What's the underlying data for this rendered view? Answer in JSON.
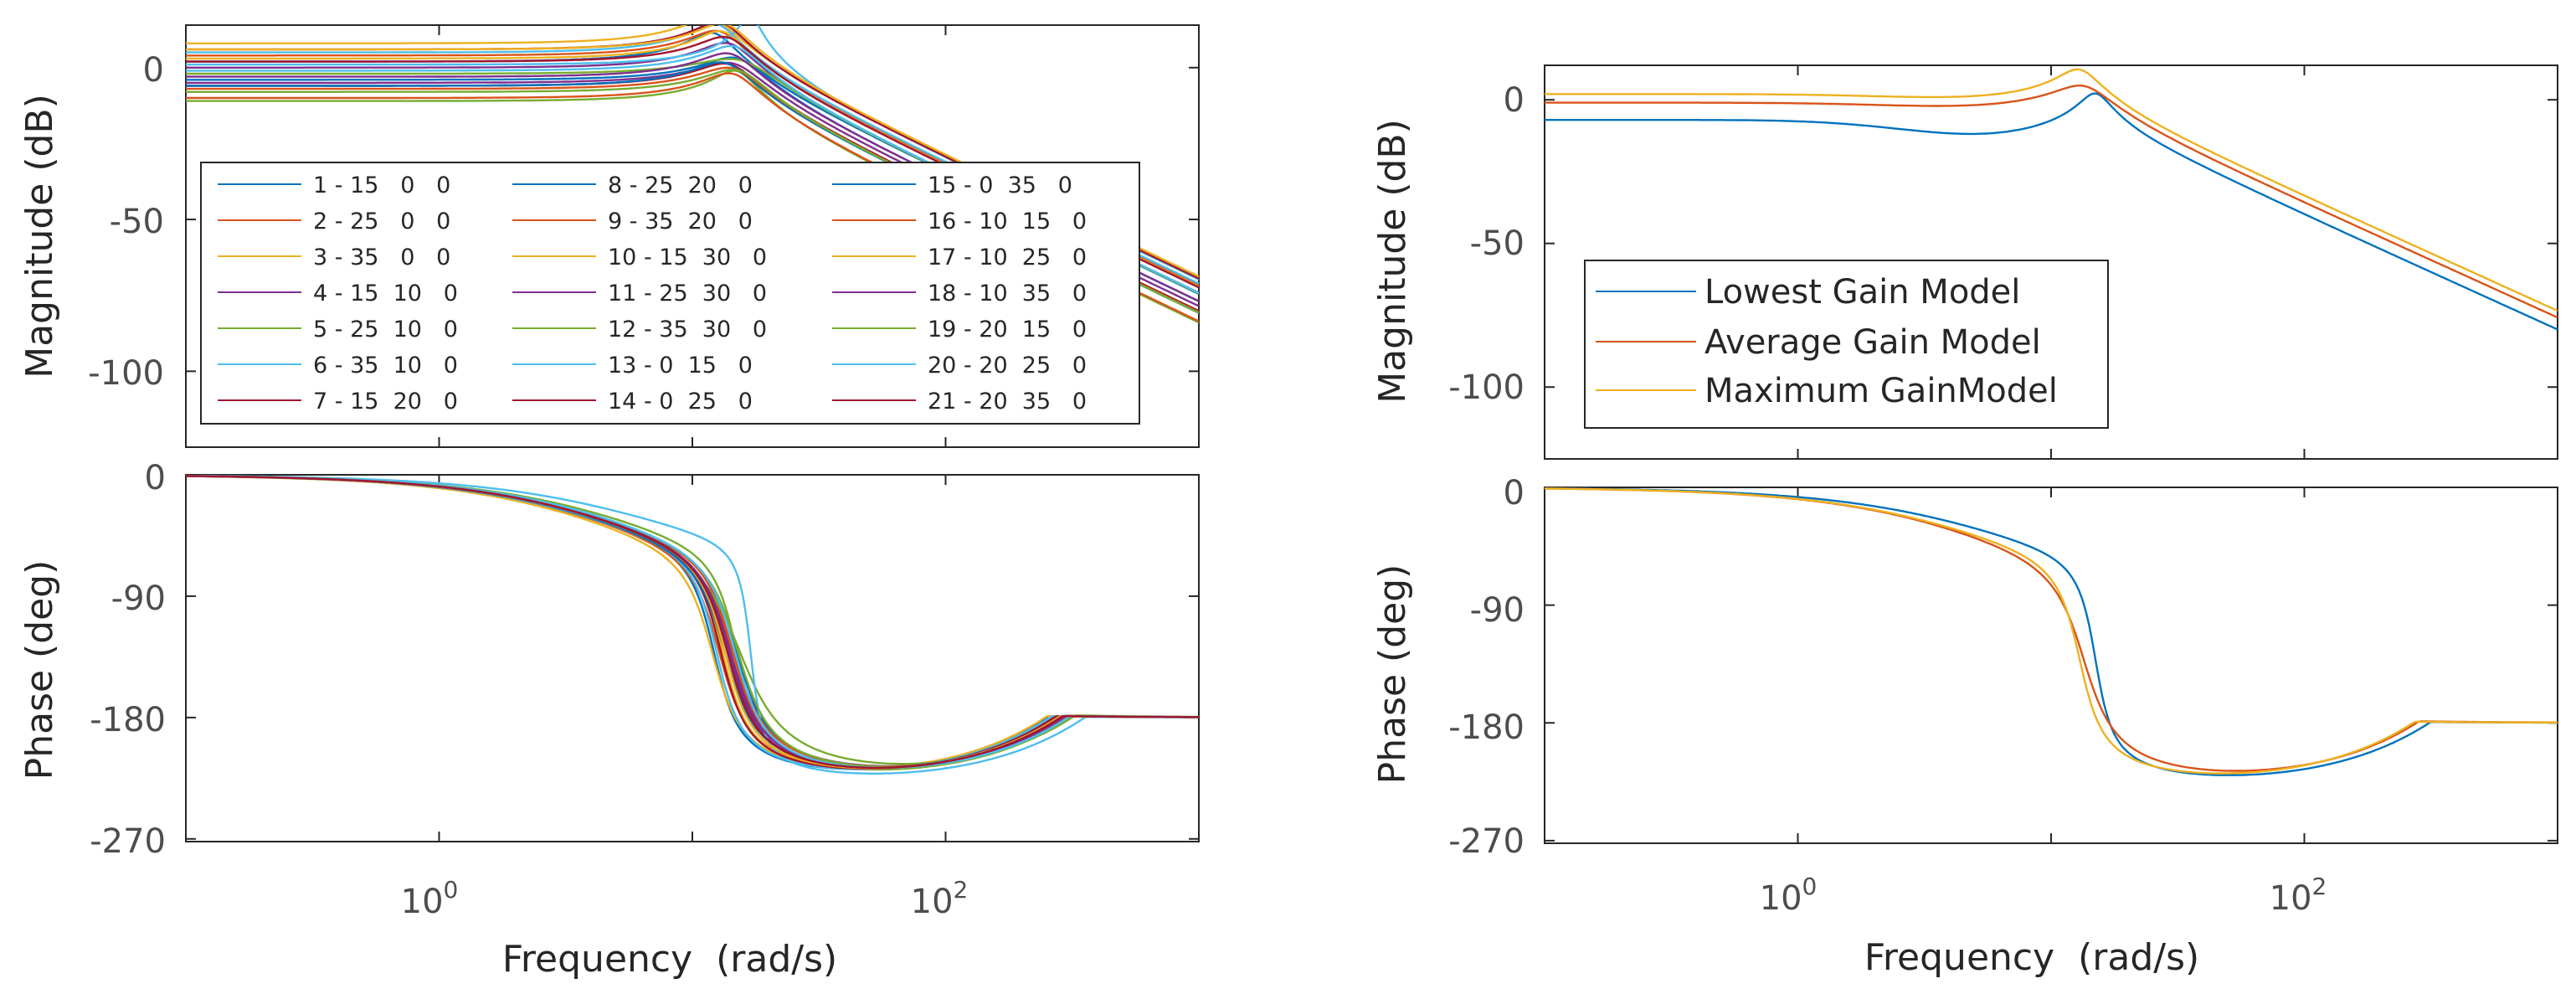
{
  "chart_data": [
    {
      "type": "line",
      "title": "",
      "panel": "magnitude",
      "xscale": "log",
      "xlim": [
        0.1,
        1000
      ],
      "ylim": [
        -125,
        14
      ],
      "xlabel": "",
      "ylabel": "Magnitude (dB)",
      "yticks": [
        0,
        -50,
        -100
      ],
      "ytick_labels": [
        "0",
        "-50",
        "-100"
      ],
      "legend_position": "center",
      "model": "second-order low-pass: K * wn^2 / (s^2 + 2*zeta*wn*s + wn^2); magnitude in dB, phase in degrees",
      "series": [
        {
          "name": "1 - 15   0   0",
          "color": "#0072BD",
          "gain_db": 2,
          "wn": 12.2,
          "zeta": 0.17
        },
        {
          "name": "2 - 25   0   0",
          "color": "#D95319",
          "gain_db": 4,
          "wn": 12.8,
          "zeta": 0.2
        },
        {
          "name": "3 - 35   0   0",
          "color": "#EDB120",
          "gain_db": 8,
          "wn": 12.0,
          "zeta": 0.2
        },
        {
          "name": "4 - 15  10   0",
          "color": "#7E2F8E",
          "gain_db": -5,
          "wn": 14.5,
          "zeta": 0.24
        },
        {
          "name": "5 - 25  10   0",
          "color": "#77AC30",
          "gain_db": -11,
          "wn": 15.0,
          "zeta": 0.16
        },
        {
          "name": "6 - 35  10   0",
          "color": "#4DBEEE",
          "gain_db": 5,
          "wn": 12.5,
          "zeta": 0.17
        },
        {
          "name": "7 - 15  20   0",
          "color": "#A2142F",
          "gain_db": -6,
          "wn": 14.0,
          "zeta": 0.22
        },
        {
          "name": "8 - 25  20   0",
          "color": "#0072BD",
          "gain_db": -4,
          "wn": 15.0,
          "zeta": 0.22
        },
        {
          "name": "9 - 35  20   0",
          "color": "#D95319",
          "gain_db": -10,
          "wn": 14.5,
          "zeta": 0.2
        },
        {
          "name": "10 - 15  30   0",
          "color": "#EDB120",
          "gain_db": 3,
          "wn": 13.2,
          "zeta": 0.18
        },
        {
          "name": "11 - 25  30   0",
          "color": "#7E2F8E",
          "gain_db": 0,
          "wn": 14.0,
          "zeta": 0.2
        },
        {
          "name": "12 - 35  30   0",
          "color": "#77AC30",
          "gain_db": -2,
          "wn": 15.5,
          "zeta": 0.3
        },
        {
          "name": "13 - 0  15   0",
          "color": "#4DBEEE",
          "gain_db": 1,
          "wn": 17.0,
          "zeta": 0.08
        },
        {
          "name": "14 - 0  25   0",
          "color": "#A2142F",
          "gain_db": 6,
          "wn": 13.0,
          "zeta": 0.18
        },
        {
          "name": "15 - 0  35   0",
          "color": "#0072BD",
          "gain_db": -6,
          "wn": 13.5,
          "zeta": 0.21
        },
        {
          "name": "16 - 10  15   0",
          "color": "#D95319",
          "gain_db": -7,
          "wn": 14.5,
          "zeta": 0.23
        },
        {
          "name": "17 - 10  25   0",
          "color": "#EDB120",
          "gain_db": 6,
          "wn": 13.5,
          "zeta": 0.19
        },
        {
          "name": "18 - 10  35   0",
          "color": "#7E2F8E",
          "gain_db": -3,
          "wn": 14.2,
          "zeta": 0.21
        },
        {
          "name": "19 - 20  15   0",
          "color": "#77AC30",
          "gain_db": -8,
          "wn": 15.2,
          "zeta": 0.22
        },
        {
          "name": "20 - 20  25   0",
          "color": "#4DBEEE",
          "gain_db": -1,
          "wn": 14.8,
          "zeta": 0.2
        },
        {
          "name": "21 - 20  35   0",
          "color": "#A2142F",
          "gain_db": 2,
          "wn": 13.8,
          "zeta": 0.2
        }
      ]
    },
    {
      "type": "line",
      "title": "",
      "panel": "phase",
      "xscale": "log",
      "xlim": [
        0.1,
        1000
      ],
      "ylim": [
        -272,
        0
      ],
      "xlabel": "Frequency  (rad/s)",
      "ylabel": "Phase (deg)",
      "xticks": [
        1,
        100
      ],
      "xtick_labels": [
        "10",
        "10"
      ],
      "xtick_exponents": [
        "0",
        "2"
      ],
      "yticks": [
        0,
        -90,
        -180,
        -270
      ],
      "ytick_labels": [
        "0",
        "-90",
        "-180",
        "-270"
      ],
      "series": "same 21 models as the magnitude panel"
    },
    {
      "type": "line",
      "title": "",
      "panel": "magnitude",
      "xscale": "log",
      "xlim": [
        0.1,
        1000
      ],
      "ylim": [
        -125,
        12
      ],
      "xlabel": "",
      "ylabel": "Magnitude (dB)",
      "yticks": [
        0,
        -50,
        -100
      ],
      "ytick_labels": [
        "0",
        "-50",
        "-100"
      ],
      "legend_position": "center-left",
      "series": [
        {
          "name": "Lowest Gain Model",
          "color": "#0072BD",
          "gain_db": -7,
          "wn": 15.0,
          "zeta": 0.12,
          "mode": "A"
        },
        {
          "name": "Average Gain Model",
          "color": "#D95319",
          "gain_db": -1,
          "wn": 13.5,
          "zeta": 0.22,
          "mode": "B"
        },
        {
          "name": "Maximum GainModel",
          "color": "#EDB120",
          "gain_db": 2,
          "wn": 13.0,
          "zeta": 0.16,
          "mode": "B"
        }
      ]
    },
    {
      "type": "line",
      "title": "",
      "panel": "phase",
      "xscale": "log",
      "xlim": [
        0.1,
        1000
      ],
      "ylim": [
        -272,
        0
      ],
      "xlabel": "Frequency  (rad/s)",
      "ylabel": "Phase (deg)",
      "xticks": [
        1,
        100
      ],
      "xtick_labels": [
        "10",
        "10"
      ],
      "xtick_exponents": [
        "0",
        "2"
      ],
      "yticks": [
        0,
        -90,
        -180,
        -270
      ],
      "ytick_labels": [
        "0",
        "-90",
        "-180",
        "-270"
      ],
      "series": "same 3 models as the right magnitude panel"
    }
  ]
}
